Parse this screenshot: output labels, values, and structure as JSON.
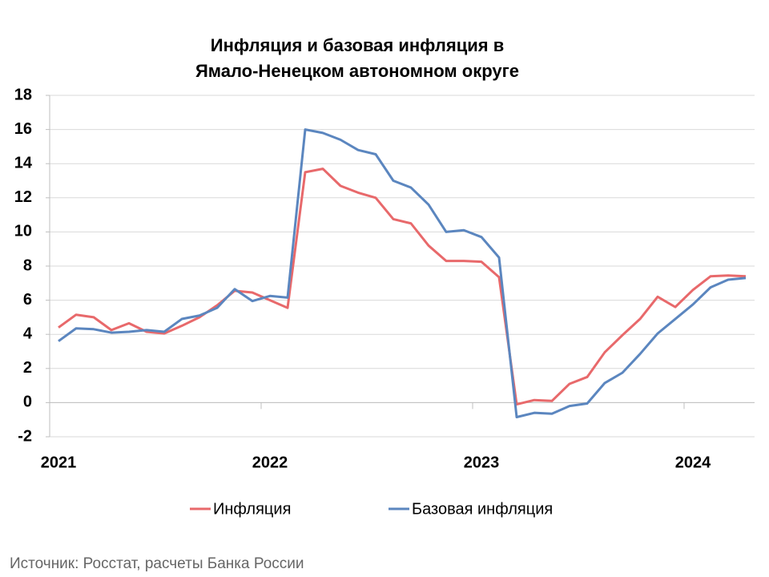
{
  "chart_data": {
    "type": "line",
    "title": [
      "Инфляция и базовая инфляция в",
      "Ямало-Ненецком автономном округе"
    ],
    "categories": [
      "2021",
      null,
      null,
      null,
      null,
      null,
      null,
      null,
      null,
      null,
      null,
      null,
      "2022",
      null,
      null,
      null,
      null,
      null,
      null,
      null,
      null,
      null,
      null,
      null,
      "2023",
      null,
      null,
      null,
      null,
      null,
      null,
      null,
      null,
      null,
      null,
      null,
      "2024",
      null,
      null,
      null
    ],
    "series": [
      {
        "name": "Инфляция",
        "color": "#e8696b",
        "values": [
          4.4,
          5.15,
          5.0,
          4.25,
          4.65,
          4.15,
          4.05,
          4.5,
          5.0,
          5.7,
          6.55,
          6.45,
          6.0,
          5.55,
          13.5,
          13.7,
          12.7,
          12.3,
          12.0,
          10.75,
          10.5,
          9.2,
          8.3,
          8.3,
          8.25,
          7.35,
          -0.1,
          0.15,
          0.1,
          1.1,
          1.5,
          2.95,
          3.95,
          4.9,
          6.2,
          5.6,
          6.6,
          7.4,
          7.45,
          7.4
        ]
      },
      {
        "name": "Базовая инфляция",
        "color": "#5b86bf",
        "values": [
          3.6,
          4.35,
          4.3,
          4.1,
          4.15,
          4.25,
          4.15,
          4.9,
          5.1,
          5.55,
          6.65,
          5.95,
          6.25,
          6.15,
          16.0,
          15.8,
          15.4,
          14.8,
          14.55,
          13.0,
          12.6,
          11.6,
          10.0,
          10.1,
          9.7,
          8.5,
          -0.85,
          -0.6,
          -0.65,
          -0.2,
          -0.05,
          1.15,
          1.75,
          2.85,
          4.05,
          4.9,
          5.75,
          6.75,
          7.2,
          7.3
        ]
      }
    ],
    "ylim": [
      -2,
      18
    ],
    "yticks": [
      -2,
      0,
      2,
      4,
      6,
      8,
      10,
      12,
      14,
      16,
      18
    ],
    "grid": true,
    "legend": "bottom",
    "source": "Источник: Росстат, расчеты Банка России"
  }
}
